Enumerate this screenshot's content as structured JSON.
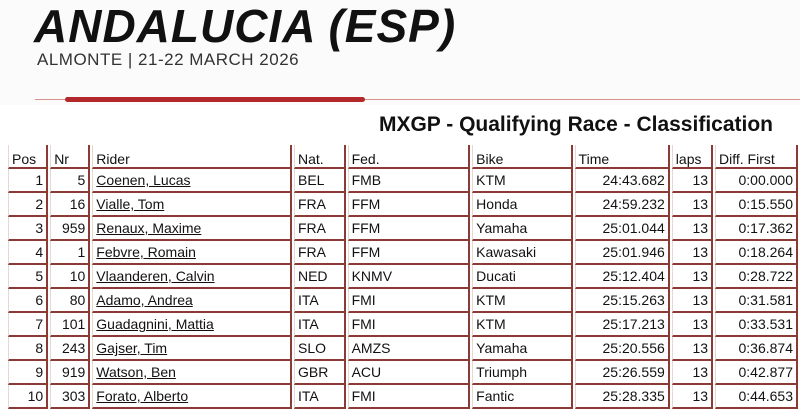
{
  "header": {
    "event_title": "ANDALUCIA (ESP)",
    "event_subtitle": "ALMONTE | 21-22 MARCH 2026",
    "accent_color": "#b3282a"
  },
  "heading": "MXGP - Qualifying Race - Classification",
  "table": {
    "columns": [
      "Pos",
      "Nr",
      "Rider",
      "Nat.",
      "Fed.",
      "Bike",
      "Time",
      "laps",
      "Diff. First"
    ],
    "rows": [
      [
        "1",
        "5",
        "Coenen, Lucas",
        "BEL",
        "FMB",
        "KTM",
        "24:43.682",
        "13",
        "0:00.000"
      ],
      [
        "2",
        "16",
        "Vialle, Tom",
        "FRA",
        "FFM",
        "Honda",
        "24:59.232",
        "13",
        "0:15.550"
      ],
      [
        "3",
        "959",
        "Renaux, Maxime",
        "FRA",
        "FFM",
        "Yamaha",
        "25:01.044",
        "13",
        "0:17.362"
      ],
      [
        "4",
        "1",
        "Febvre, Romain",
        "FRA",
        "FFM",
        "Kawasaki",
        "25:01.946",
        "13",
        "0:18.264"
      ],
      [
        "5",
        "10",
        "Vlaanderen, Calvin",
        "NED",
        "KNMV",
        "Ducati",
        "25:12.404",
        "13",
        "0:28.722"
      ],
      [
        "6",
        "80",
        "Adamo, Andrea",
        "ITA",
        "FMI",
        "KTM",
        "25:15.263",
        "13",
        "0:31.581"
      ],
      [
        "7",
        "101",
        "Guadagnini, Mattia",
        "ITA",
        "FMI",
        "KTM",
        "25:17.213",
        "13",
        "0:33.531"
      ],
      [
        "8",
        "243",
        "Gajser, Tim",
        "SLO",
        "AMZS",
        "Yamaha",
        "25:20.556",
        "13",
        "0:36.874"
      ],
      [
        "9",
        "919",
        "Watson, Ben",
        "GBR",
        "ACU",
        "Triumph",
        "25:26.559",
        "13",
        "0:42.877"
      ],
      [
        "10",
        "303",
        "Forato, Alberto",
        "ITA",
        "FMI",
        "Fantic",
        "25:28.335",
        "13",
        "0:44.653"
      ]
    ]
  }
}
